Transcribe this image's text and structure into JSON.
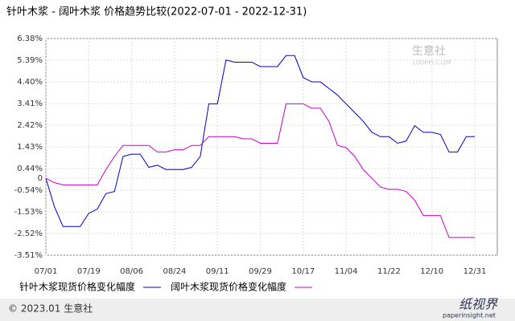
{
  "chart_data": {
    "type": "line",
    "title": "针叶木浆 - 阔叶木浆 价格趋势比较(2022-07-01 - 2022-12-31)",
    "categories": [
      "07/01",
      null,
      null,
      null,
      null,
      "07/19",
      null,
      null,
      null,
      null,
      "08/06",
      null,
      null,
      null,
      null,
      "08/24",
      null,
      null,
      null,
      null,
      "09/11",
      null,
      null,
      null,
      null,
      "09/29",
      null,
      null,
      null,
      null,
      "10/17",
      null,
      null,
      null,
      null,
      "11/04",
      null,
      null,
      null,
      null,
      "11/22",
      null,
      null,
      null,
      null,
      "12/10",
      null,
      null,
      null,
      null,
      "12/31"
    ],
    "series": [
      {
        "name": "针叶木浆现货价格变化幅度",
        "color": "#0000cc",
        "values": [
          0,
          -1.3,
          -2.2,
          -2.2,
          -2.2,
          -1.6,
          -1.4,
          -0.7,
          -0.6,
          1.0,
          1.1,
          1.1,
          0.5,
          0.6,
          0.4,
          0.4,
          0.4,
          0.5,
          1.0,
          3.4,
          3.4,
          5.4,
          5.3,
          5.3,
          5.3,
          5.1,
          5.1,
          5.1,
          5.6,
          5.6,
          4.6,
          4.4,
          4.4,
          4.1,
          3.8,
          3.4,
          3.0,
          2.6,
          2.1,
          1.9,
          1.9,
          1.6,
          1.7,
          2.4,
          2.1,
          2.1,
          2.0,
          1.2,
          1.2,
          1.9,
          1.9
        ]
      },
      {
        "name": "阔叶木浆现货价格变化幅度",
        "color": "#cc00cc",
        "values": [
          0,
          -0.2,
          -0.3,
          -0.3,
          -0.3,
          -0.3,
          -0.3,
          0.4,
          1.0,
          1.5,
          1.5,
          1.5,
          1.5,
          1.2,
          1.2,
          1.3,
          1.3,
          1.5,
          1.5,
          1.9,
          1.9,
          1.9,
          1.9,
          1.8,
          1.8,
          1.6,
          1.6,
          1.6,
          3.4,
          3.4,
          3.4,
          3.2,
          3.2,
          2.6,
          1.5,
          1.4,
          1.0,
          0.4,
          0.0,
          -0.4,
          -0.5,
          -0.5,
          -0.6,
          -1.0,
          -1.7,
          -1.7,
          -1.7,
          -2.7,
          -2.7,
          -2.7,
          -2.7
        ]
      }
    ],
    "ylim": [
      -3.51,
      6.38
    ],
    "yticks": [
      {
        "value": 6.38,
        "label": "6.38%"
      },
      {
        "value": 5.39,
        "label": "5.39%"
      },
      {
        "value": 4.4,
        "label": "4.40%"
      },
      {
        "value": 3.41,
        "label": "3.41%"
      },
      {
        "value": 2.42,
        "label": "2.42%"
      },
      {
        "value": 1.43,
        "label": "1.43%"
      },
      {
        "value": 0.44,
        "label": "0.44%"
      },
      0,
      {
        "value": -0.54,
        "label": "-0.54%"
      },
      {
        "value": -1.53,
        "label": "-1.53%"
      },
      {
        "value": -2.52,
        "label": "-2.52%"
      },
      {
        "value": -3.51,
        "label": "-3.51%"
      }
    ],
    "grid": true,
    "footer": "© 2023.01 生意社",
    "watermark": "生意社",
    "watermark_url": "100PPI.COM",
    "logo": "纸视界",
    "logo_url": "paperinsight.net"
  }
}
